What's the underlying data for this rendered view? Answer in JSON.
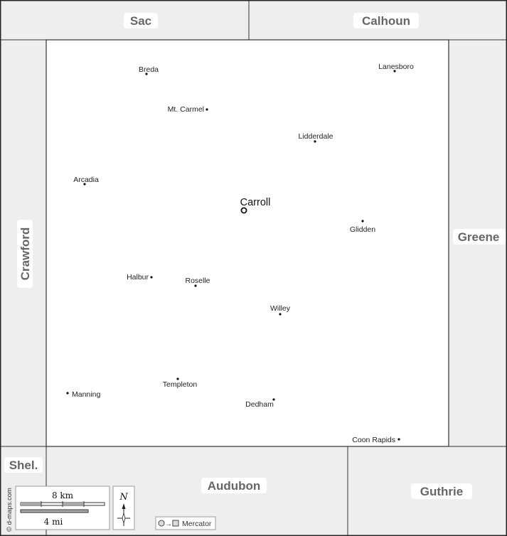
{
  "map": {
    "colors": {
      "neighbor_fill": "#eeeeee",
      "county_fill": "#ffffff",
      "border": "#333333",
      "label": "#666666"
    },
    "neighbors": {
      "sac": "Sac",
      "calhoun": "Calhoun",
      "crawford": "Crawford",
      "greene": "Greene",
      "shelby": "Shel.",
      "audubon": "Audubon",
      "guthrie": "Guthrie"
    },
    "county_seat": "Carroll",
    "towns": {
      "breda": "Breda",
      "lanesboro": "Lanesboro",
      "mt_carmel": "Mt. Carmel",
      "lidderdale": "Lidderdale",
      "arcadia": "Arcadia",
      "glidden": "Glidden",
      "halbur": "Halbur",
      "roselle": "Roselle",
      "willey": "Willey",
      "templeton": "Templeton",
      "manning": "Manning",
      "dedham": "Dedham",
      "coon_rapids": "Coon Rapids"
    },
    "credit": "© d-maps.com",
    "scale": {
      "km": "8 km",
      "mi": "4 mi"
    },
    "north": "N",
    "projection": "Mercator"
  }
}
